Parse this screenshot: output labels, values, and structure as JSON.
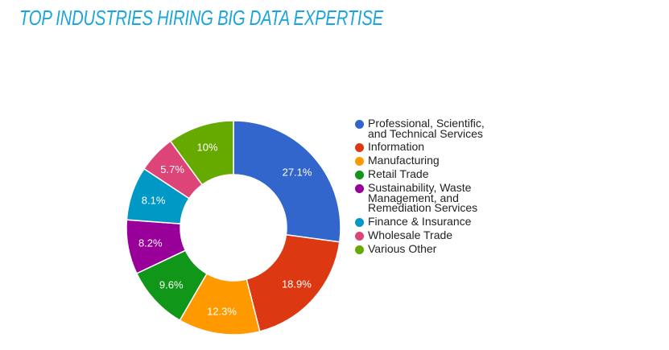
{
  "chart_data": {
    "type": "pie",
    "variant": "donut",
    "title": "TOP INDUSTRIES HIRING BIG DATA EXPERTISE",
    "legend_position": "right",
    "slices": [
      {
        "label": "Professional, Scientific, and Technical Services",
        "legend_lines": [
          "Professional, Scientific,",
          "and Technical Services"
        ],
        "value": 27.1,
        "display": "27.1%",
        "color": "#3366cc"
      },
      {
        "label": "Information",
        "legend_lines": [
          "Information"
        ],
        "value": 18.9,
        "display": "18.9%",
        "color": "#dc3912"
      },
      {
        "label": "Manufacturing",
        "legend_lines": [
          "Manufacturing"
        ],
        "value": 12.3,
        "display": "12.3%",
        "color": "#ff9900"
      },
      {
        "label": "Retail Trade",
        "legend_lines": [
          "Retail Trade"
        ],
        "value": 9.6,
        "display": "9.6%",
        "color": "#109618"
      },
      {
        "label": "Sustainability, Waste Management, and Remediation Services",
        "legend_lines": [
          "Sustainability, Waste",
          "Management, and",
          "Remediation Services"
        ],
        "value": 8.2,
        "display": "8.2%",
        "color": "#990099"
      },
      {
        "label": "Finance & Insurance",
        "legend_lines": [
          "Finance & Insurance"
        ],
        "value": 8.1,
        "display": "8.1%",
        "color": "#0099c6"
      },
      {
        "label": "Wholesale Trade",
        "legend_lines": [
          "Wholesale Trade"
        ],
        "value": 5.7,
        "display": "5.7%",
        "color": "#dd4477"
      },
      {
        "label": "Various Other",
        "legend_lines": [
          "Various Other"
        ],
        "value": 10,
        "display": "10%",
        "color": "#66aa00"
      }
    ]
  }
}
